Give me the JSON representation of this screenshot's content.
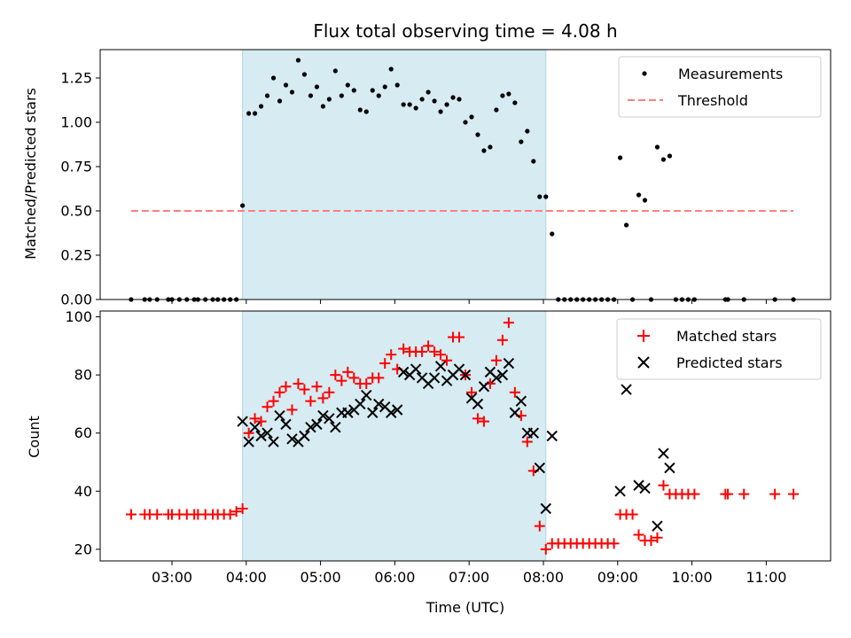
{
  "chart_data": {
    "title": "Flux total observing time = 4.08 h",
    "shaded_interval": {
      "start": "03:57",
      "end": "08:02",
      "color": "#add8e6"
    },
    "x_ticks": [
      "03:00",
      "04:00",
      "05:00",
      "06:00",
      "07:00",
      "08:00",
      "09:00",
      "10:00",
      "11:00"
    ],
    "xlim": [
      "02:02",
      "11:52"
    ],
    "xlabel": "Time (UTC)",
    "top": {
      "type": "scatter",
      "ylabel": "Matched/Predicted stars",
      "ylim": [
        0,
        1.41
      ],
      "y_ticks": [
        "0.00",
        "0.25",
        "0.50",
        "0.75",
        "1.00",
        "1.25"
      ],
      "legend": {
        "position": "top-right",
        "entries": [
          "Measurements",
          "Threshold"
        ]
      },
      "threshold": {
        "name": "Threshold",
        "y": 0.5,
        "x_start": "02:27",
        "x_end": "11:22",
        "color": "#ff7f7f"
      },
      "series": [
        {
          "name": "Measurements",
          "color": "#000000",
          "points": [
            [
              "02:27",
              0
            ],
            [
              "02:38",
              0
            ],
            [
              "02:42",
              0
            ],
            [
              "02:48",
              0
            ],
            [
              "02:57",
              0
            ],
            [
              "03:00",
              0
            ],
            [
              "03:06",
              0
            ],
            [
              "03:12",
              0
            ],
            [
              "03:18",
              0
            ],
            [
              "03:21",
              0
            ],
            [
              "03:27",
              0
            ],
            [
              "03:33",
              0
            ],
            [
              "03:37",
              0
            ],
            [
              "03:42",
              0
            ],
            [
              "03:47",
              0
            ],
            [
              "03:52",
              0
            ],
            [
              "03:57",
              0.53
            ],
            [
              "04:02",
              1.05
            ],
            [
              "04:07",
              1.05
            ],
            [
              "04:12",
              1.09
            ],
            [
              "04:17",
              1.15
            ],
            [
              "04:22",
              1.25
            ],
            [
              "04:27",
              1.12
            ],
            [
              "04:32",
              1.21
            ],
            [
              "04:37",
              1.17
            ],
            [
              "04:42",
              1.35
            ],
            [
              "04:47",
              1.27
            ],
            [
              "04:52",
              1.15
            ],
            [
              "04:57",
              1.2
            ],
            [
              "05:02",
              1.09
            ],
            [
              "05:07",
              1.13
            ],
            [
              "05:12",
              1.29
            ],
            [
              "05:17",
              1.15
            ],
            [
              "05:22",
              1.21
            ],
            [
              "05:27",
              1.18
            ],
            [
              "05:32",
              1.07
            ],
            [
              "05:37",
              1.06
            ],
            [
              "05:42",
              1.18
            ],
            [
              "05:47",
              1.15
            ],
            [
              "05:52",
              1.2
            ],
            [
              "05:57",
              1.3
            ],
            [
              "06:02",
              1.21
            ],
            [
              "06:07",
              1.1
            ],
            [
              "06:12",
              1.1
            ],
            [
              "06:17",
              1.08
            ],
            [
              "06:22",
              1.13
            ],
            [
              "06:27",
              1.17
            ],
            [
              "06:32",
              1.12
            ],
            [
              "06:37",
              1.06
            ],
            [
              "06:42",
              1.1
            ],
            [
              "06:47",
              1.14
            ],
            [
              "06:52",
              1.13
            ],
            [
              "06:57",
              1.0
            ],
            [
              "07:02",
              1.03
            ],
            [
              "07:07",
              0.93
            ],
            [
              "07:12",
              0.84
            ],
            [
              "07:17",
              0.86
            ],
            [
              "07:22",
              1.07
            ],
            [
              "07:27",
              1.15
            ],
            [
              "07:32",
              1.16
            ],
            [
              "07:37",
              1.11
            ],
            [
              "07:42",
              0.89
            ],
            [
              "07:47",
              0.95
            ],
            [
              "07:52",
              0.78
            ],
            [
              "07:57",
              0.58
            ],
            [
              "08:02",
              0.58
            ],
            [
              "08:07",
              0.37
            ],
            [
              "08:12",
              0
            ],
            [
              "08:17",
              0
            ],
            [
              "08:22",
              0
            ],
            [
              "08:27",
              0
            ],
            [
              "08:32",
              0
            ],
            [
              "08:37",
              0
            ],
            [
              "08:42",
              0
            ],
            [
              "08:47",
              0
            ],
            [
              "08:52",
              0
            ],
            [
              "08:57",
              0
            ],
            [
              "09:02",
              0.8
            ],
            [
              "09:07",
              0.42
            ],
            [
              "09:12",
              0
            ],
            [
              "09:17",
              0.59
            ],
            [
              "09:22",
              0.56
            ],
            [
              "09:27",
              0
            ],
            [
              "09:32",
              0.86
            ],
            [
              "09:37",
              0.79
            ],
            [
              "09:42",
              0.81
            ],
            [
              "09:47",
              0
            ],
            [
              "09:52",
              0
            ],
            [
              "09:57",
              0
            ],
            [
              "10:02",
              0
            ],
            [
              "10:27",
              0
            ],
            [
              "10:29",
              0
            ],
            [
              "10:42",
              0
            ],
            [
              "11:07",
              0
            ],
            [
              "11:22",
              0
            ]
          ]
        }
      ]
    },
    "bottom": {
      "type": "scatter",
      "ylabel": "Count",
      "ylim": [
        16,
        102
      ],
      "y_ticks": [
        "20",
        "40",
        "60",
        "80",
        "100"
      ],
      "legend": {
        "position": "top-right",
        "entries": [
          "Matched stars",
          "Predicted stars"
        ]
      },
      "series": [
        {
          "name": "Matched stars",
          "marker": "plus",
          "color": "#ff0000",
          "points": [
            [
              "02:27",
              32
            ],
            [
              "02:38",
              32
            ],
            [
              "02:42",
              32
            ],
            [
              "02:48",
              32
            ],
            [
              "02:57",
              32
            ],
            [
              "03:00",
              32
            ],
            [
              "03:06",
              32
            ],
            [
              "03:12",
              32
            ],
            [
              "03:18",
              32
            ],
            [
              "03:21",
              32
            ],
            [
              "03:27",
              32
            ],
            [
              "03:33",
              32
            ],
            [
              "03:37",
              32
            ],
            [
              "03:42",
              32
            ],
            [
              "03:47",
              32
            ],
            [
              "03:52",
              33
            ],
            [
              "03:57",
              34
            ],
            [
              "04:02",
              60
            ],
            [
              "04:07",
              65
            ],
            [
              "04:12",
              64
            ],
            [
              "04:17",
              69
            ],
            [
              "04:22",
              71
            ],
            [
              "04:27",
              74
            ],
            [
              "04:32",
              76
            ],
            [
              "04:37",
              68
            ],
            [
              "04:42",
              77
            ],
            [
              "04:47",
              75
            ],
            [
              "04:52",
              71
            ],
            [
              "04:57",
              76
            ],
            [
              "05:02",
              72
            ],
            [
              "05:07",
              74
            ],
            [
              "05:12",
              80
            ],
            [
              "05:17",
              78
            ],
            [
              "05:22",
              81
            ],
            [
              "05:27",
              79
            ],
            [
              "05:32",
              77
            ],
            [
              "05:37",
              77
            ],
            [
              "05:42",
              79
            ],
            [
              "05:47",
              79
            ],
            [
              "05:52",
              84
            ],
            [
              "05:57",
              87
            ],
            [
              "06:02",
              82
            ],
            [
              "06:07",
              89
            ],
            [
              "06:12",
              88
            ],
            [
              "06:17",
              88
            ],
            [
              "06:22",
              88
            ],
            [
              "06:27",
              90
            ],
            [
              "06:32",
              88
            ],
            [
              "06:37",
              87
            ],
            [
              "06:42",
              85
            ],
            [
              "06:47",
              93
            ],
            [
              "06:52",
              93
            ],
            [
              "06:57",
              80
            ],
            [
              "07:02",
              74
            ],
            [
              "07:07",
              65
            ],
            [
              "07:12",
              64
            ],
            [
              "07:17",
              77
            ],
            [
              "07:22",
              85
            ],
            [
              "07:27",
              92
            ],
            [
              "07:32",
              98
            ],
            [
              "07:37",
              74
            ],
            [
              "07:42",
              66
            ],
            [
              "07:47",
              57
            ],
            [
              "07:52",
              47
            ],
            [
              "07:57",
              28
            ],
            [
              "08:02",
              20
            ],
            [
              "08:07",
              22
            ],
            [
              "08:12",
              22
            ],
            [
              "08:17",
              22
            ],
            [
              "08:22",
              22
            ],
            [
              "08:27",
              22
            ],
            [
              "08:32",
              22
            ],
            [
              "08:37",
              22
            ],
            [
              "08:42",
              22
            ],
            [
              "08:47",
              22
            ],
            [
              "08:52",
              22
            ],
            [
              "08:57",
              22
            ],
            [
              "09:02",
              32
            ],
            [
              "09:07",
              32
            ],
            [
              "09:12",
              32
            ],
            [
              "09:17",
              25
            ],
            [
              "09:22",
              23
            ],
            [
              "09:27",
              23
            ],
            [
              "09:32",
              24
            ],
            [
              "09:37",
              42
            ],
            [
              "09:42",
              39
            ],
            [
              "09:47",
              39
            ],
            [
              "09:52",
              39
            ],
            [
              "09:57",
              39
            ],
            [
              "10:02",
              39
            ],
            [
              "10:27",
              39
            ],
            [
              "10:29",
              39
            ],
            [
              "10:42",
              39
            ],
            [
              "11:07",
              39
            ],
            [
              "11:22",
              39
            ]
          ]
        },
        {
          "name": "Predicted stars",
          "marker": "x",
          "color": "#000000",
          "points": [
            [
              "03:57",
              64
            ],
            [
              "04:02",
              57
            ],
            [
              "04:07",
              62
            ],
            [
              "04:12",
              59
            ],
            [
              "04:17",
              60
            ],
            [
              "04:22",
              57
            ],
            [
              "04:27",
              66
            ],
            [
              "04:32",
              63
            ],
            [
              "04:37",
              58
            ],
            [
              "04:42",
              57
            ],
            [
              "04:47",
              59
            ],
            [
              "04:52",
              62
            ],
            [
              "04:57",
              63
            ],
            [
              "05:02",
              66
            ],
            [
              "05:07",
              65
            ],
            [
              "05:12",
              62
            ],
            [
              "05:17",
              67
            ],
            [
              "05:22",
              67
            ],
            [
              "05:27",
              68
            ],
            [
              "05:32",
              70
            ],
            [
              "05:37",
              73
            ],
            [
              "05:42",
              67
            ],
            [
              "05:47",
              70
            ],
            [
              "05:52",
              69
            ],
            [
              "05:57",
              67
            ],
            [
              "06:02",
              68
            ],
            [
              "06:07",
              81
            ],
            [
              "06:12",
              80
            ],
            [
              "06:17",
              82
            ],
            [
              "06:22",
              79
            ],
            [
              "06:27",
              77
            ],
            [
              "06:32",
              79
            ],
            [
              "06:37",
              83
            ],
            [
              "06:42",
              78
            ],
            [
              "06:47",
              80
            ],
            [
              "06:52",
              82
            ],
            [
              "06:57",
              80
            ],
            [
              "07:02",
              72
            ],
            [
              "07:07",
              70
            ],
            [
              "07:12",
              76
            ],
            [
              "07:17",
              81
            ],
            [
              "07:22",
              79
            ],
            [
              "07:27",
              80
            ],
            [
              "07:32",
              84
            ],
            [
              "07:37",
              67
            ],
            [
              "07:42",
              71
            ],
            [
              "07:47",
              60
            ],
            [
              "07:52",
              60
            ],
            [
              "07:57",
              48
            ],
            [
              "08:02",
              34
            ],
            [
              "08:07",
              59
            ],
            [
              "09:02",
              40
            ],
            [
              "09:07",
              75
            ],
            [
              "09:17",
              42
            ],
            [
              "09:22",
              41
            ],
            [
              "09:32",
              28
            ],
            [
              "09:37",
              53
            ],
            [
              "09:42",
              48
            ]
          ]
        }
      ]
    }
  }
}
